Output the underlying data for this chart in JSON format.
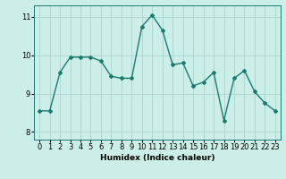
{
  "x": [
    0,
    1,
    2,
    3,
    4,
    5,
    6,
    7,
    8,
    9,
    10,
    11,
    12,
    13,
    14,
    15,
    16,
    17,
    18,
    19,
    20,
    21,
    22,
    23
  ],
  "y": [
    8.55,
    8.55,
    9.55,
    9.95,
    9.95,
    9.95,
    9.85,
    9.45,
    9.4,
    9.4,
    10.75,
    11.05,
    10.65,
    9.75,
    9.8,
    9.2,
    9.3,
    9.55,
    8.3,
    9.4,
    9.6,
    9.05,
    8.75,
    8.55
  ],
  "xlabel": "Humidex (Indice chaleur)",
  "ylim": [
    7.8,
    11.3
  ],
  "xlim": [
    -0.5,
    23.5
  ],
  "yticks": [
    8,
    9,
    10,
    11
  ],
  "xticks": [
    0,
    1,
    2,
    3,
    4,
    5,
    6,
    7,
    8,
    9,
    10,
    11,
    12,
    13,
    14,
    15,
    16,
    17,
    18,
    19,
    20,
    21,
    22,
    23
  ],
  "line_color": "#1a7a6e",
  "bg_color": "#cceee8",
  "grid_color": "#aad4cc",
  "marker": "D",
  "marker_size": 2.0,
  "line_width": 1.0,
  "tick_fontsize": 6.0,
  "xlabel_fontsize": 6.5
}
